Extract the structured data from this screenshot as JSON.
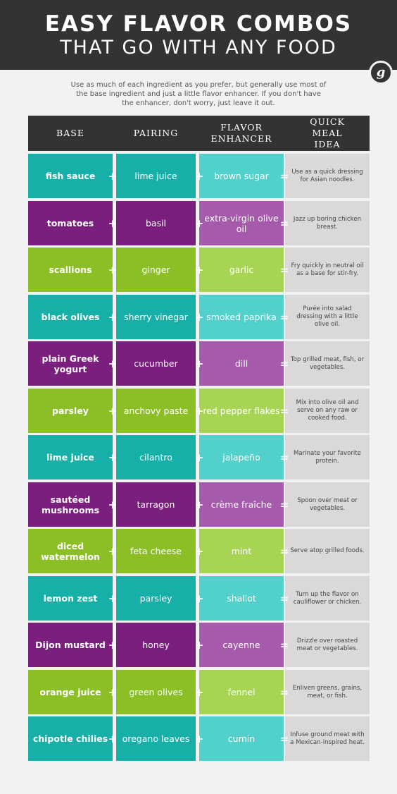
{
  "header": {
    "title_line1": "EASY FLAVOR COMBOS",
    "title_line2": "THAT GO WITH ANY FOOD",
    "logo": "g"
  },
  "intro": "Use as much of each ingredient as you prefer, but generally use most of the base ingredient and just a little flavor enhancer. If you don't have the enhancer, don't worry, just leave it out.",
  "columns": {
    "base": "BASE",
    "pairing": "PAIRING",
    "enhancer": "FLAVOR ENHANCER",
    "meal": "QUICK MEAL IDEA"
  },
  "operators": {
    "plus": "+",
    "equals": "="
  },
  "colors": {
    "teal": "#17b0a8",
    "teal_light": "#52d0cc",
    "purple": "#7b1f7f",
    "purple_light": "#a55aab",
    "green": "#8cbf26",
    "green_light": "#a8d453",
    "meal_bg": "#d9d9d9",
    "header_bg": "#333333"
  },
  "rows": [
    {
      "theme": "teal",
      "base": "fish sauce",
      "pairing": "lime juice",
      "enhancer": "brown sugar",
      "meal": "Use as a quick dressing for Asian noodles."
    },
    {
      "theme": "purple",
      "base": "tomatoes",
      "pairing": "basil",
      "enhancer": "extra-virgin olive oil",
      "meal": "Jazz up boring chicken breast."
    },
    {
      "theme": "green",
      "base": "scallions",
      "pairing": "ginger",
      "enhancer": "garlic",
      "meal": "Fry quickly in neutral oil as a base for stir-fry."
    },
    {
      "theme": "teal",
      "base": "black olives",
      "pairing": "sherry vinegar",
      "enhancer": "smoked paprika",
      "meal": "Purée into salad dressing with a little olive oil."
    },
    {
      "theme": "purple",
      "base": "plain Greek yogurt",
      "pairing": "cucumber",
      "enhancer": "dill",
      "meal": "Top grilled meat, fish, or vegetables."
    },
    {
      "theme": "green",
      "base": "parsley",
      "pairing": "anchovy paste",
      "enhancer": "red pepper flakes",
      "meal": "Mix into olive oil and serve on any raw or cooked food."
    },
    {
      "theme": "teal",
      "base": "lime juice",
      "pairing": "cilantro",
      "enhancer": "jalapeño",
      "meal": "Marinate your favorite protein."
    },
    {
      "theme": "purple",
      "base": "sautéed mushrooms",
      "pairing": "tarragon",
      "enhancer": "crème fraîche",
      "meal": "Spoon over meat or vegetables."
    },
    {
      "theme": "green",
      "base": "diced watermelon",
      "pairing": "feta cheese",
      "enhancer": "mint",
      "meal": "Serve atop grilled foods."
    },
    {
      "theme": "teal",
      "base": "lemon zest",
      "pairing": "parsley",
      "enhancer": "shallot",
      "meal": "Turn up the flavor on cauliflower or chicken."
    },
    {
      "theme": "purple",
      "base": "Dijon mustard",
      "pairing": "honey",
      "enhancer": "cayenne",
      "meal": "Drizzle over roasted meat or vegetables."
    },
    {
      "theme": "green",
      "base": "orange juice",
      "pairing": "green olives",
      "enhancer": "fennel",
      "meal": "Enliven greens, grains, meat, or fish."
    },
    {
      "theme": "teal",
      "base": "chipotle chilies",
      "pairing": "oregano leaves",
      "enhancer": "cumin",
      "meal": "Infuse ground meat with a Mexican-inspired heat."
    }
  ]
}
